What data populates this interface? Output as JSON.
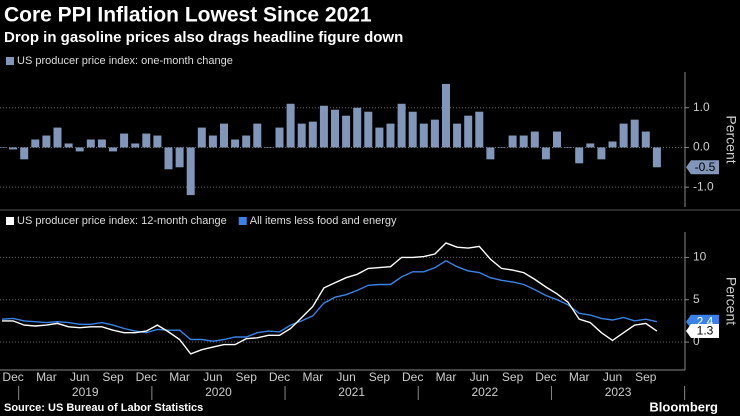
{
  "title": "Core PPI Inflation Lowest Since 2021",
  "subtitle": "Drop in gasoline prices also drags headline figure down",
  "source": "Source: US Bureau of Labor Statistics",
  "logo": "Bloomberg",
  "chart_data": [
    {
      "type": "bar",
      "y_label": "Percent",
      "grid": true,
      "ylim": [
        -1.5,
        1.9
      ],
      "yticks": [
        {
          "value": 1,
          "label": "1.0"
        },
        {
          "value": 0,
          "label": "0.0"
        },
        {
          "value": -1,
          "label": "-1.0"
        }
      ],
      "series": [
        {
          "name": "US producer price index: one-month change",
          "color": "#8196b9",
          "values": [
            0.0,
            -0.05,
            -0.3,
            0.2,
            0.3,
            0.5,
            0.1,
            -0.1,
            0.2,
            0.2,
            -0.1,
            0.35,
            0.1,
            0.35,
            0.3,
            -0.55,
            -0.5,
            -1.2,
            0.5,
            0.3,
            0.6,
            0.2,
            0.3,
            0.6,
            0.0,
            0.5,
            1.1,
            0.6,
            0.65,
            1.05,
            0.95,
            0.8,
            1.0,
            0.9,
            0.5,
            0.6,
            1.1,
            0.9,
            0.6,
            0.7,
            1.6,
            0.6,
            0.8,
            0.9,
            -0.3,
            0.0,
            0.3,
            0.3,
            0.4,
            -0.3,
            0.4,
            0.0,
            -0.4,
            0.1,
            -0.3,
            0.15,
            0.6,
            0.7,
            0.4,
            -0.5
          ]
        }
      ]
    },
    {
      "type": "line",
      "y_label": "Percent",
      "grid": true,
      "categories": [
        null,
        "Dec",
        null,
        null,
        "Mar",
        null,
        null,
        "Jun",
        null,
        null,
        "Sep",
        null,
        null,
        "Dec",
        null,
        null,
        "Mar",
        null,
        null,
        "Jun",
        null,
        null,
        "Sep",
        null,
        null,
        "Dec",
        null,
        null,
        "Mar",
        null,
        null,
        "Jun",
        null,
        null,
        "Sep",
        null,
        null,
        "Dec",
        null,
        null,
        "Mar",
        null,
        null,
        "Jun",
        null,
        null,
        "Sep",
        null,
        null,
        "Dec",
        null,
        null,
        "Mar",
        null,
        null,
        "Jun",
        null,
        null,
        "Sep",
        null
      ],
      "years": [
        "2019",
        "2020",
        "2021",
        "2022",
        "2023"
      ],
      "ylim": [
        -3.3,
        13
      ],
      "yticks": [
        10,
        5,
        0
      ],
      "series": [
        {
          "name": "US producer price index: 12-month change",
          "color": "#ffffff",
          "values": [
            2.5,
            2.5,
            2.0,
            1.9,
            2.0,
            2.2,
            1.8,
            1.7,
            1.8,
            1.8,
            1.4,
            1.1,
            1.1,
            1.3,
            2.0,
            1.2,
            0.3,
            -1.4,
            -0.9,
            -0.6,
            -0.3,
            -0.3,
            0.4,
            0.5,
            0.8,
            0.8,
            1.6,
            2.9,
            4.2,
            6.4,
            7.0,
            7.6,
            8.0,
            8.7,
            8.8,
            8.9,
            10.0,
            10.0,
            10.1,
            10.4,
            11.7,
            11.2,
            11.1,
            11.3,
            9.8,
            8.7,
            8.5,
            8.2,
            7.4,
            6.5,
            5.7,
            4.7,
            2.7,
            2.3,
            1.1,
            0.2,
            1.1,
            2.0,
            2.2,
            1.3
          ]
        },
        {
          "name": "All items less food and energy",
          "color": "#3a82e6",
          "values": [
            2.7,
            2.8,
            2.5,
            2.4,
            2.3,
            2.4,
            2.3,
            2.1,
            2.1,
            2.3,
            2.0,
            1.6,
            1.3,
            1.1,
            1.5,
            1.4,
            1.4,
            0.3,
            0.3,
            0.1,
            0.3,
            0.6,
            0.6,
            1.1,
            1.3,
            1.2,
            2.0,
            2.5,
            3.1,
            4.6,
            5.3,
            5.6,
            6.1,
            6.7,
            6.8,
            6.8,
            7.7,
            8.3,
            8.3,
            8.8,
            9.6,
            8.9,
            8.4,
            8.2,
            7.6,
            7.3,
            7.1,
            6.8,
            6.2,
            5.5,
            5.0,
            4.4,
            3.4,
            3.2,
            2.8,
            2.6,
            2.9,
            2.5,
            2.7,
            2.4
          ]
        }
      ]
    }
  ]
}
